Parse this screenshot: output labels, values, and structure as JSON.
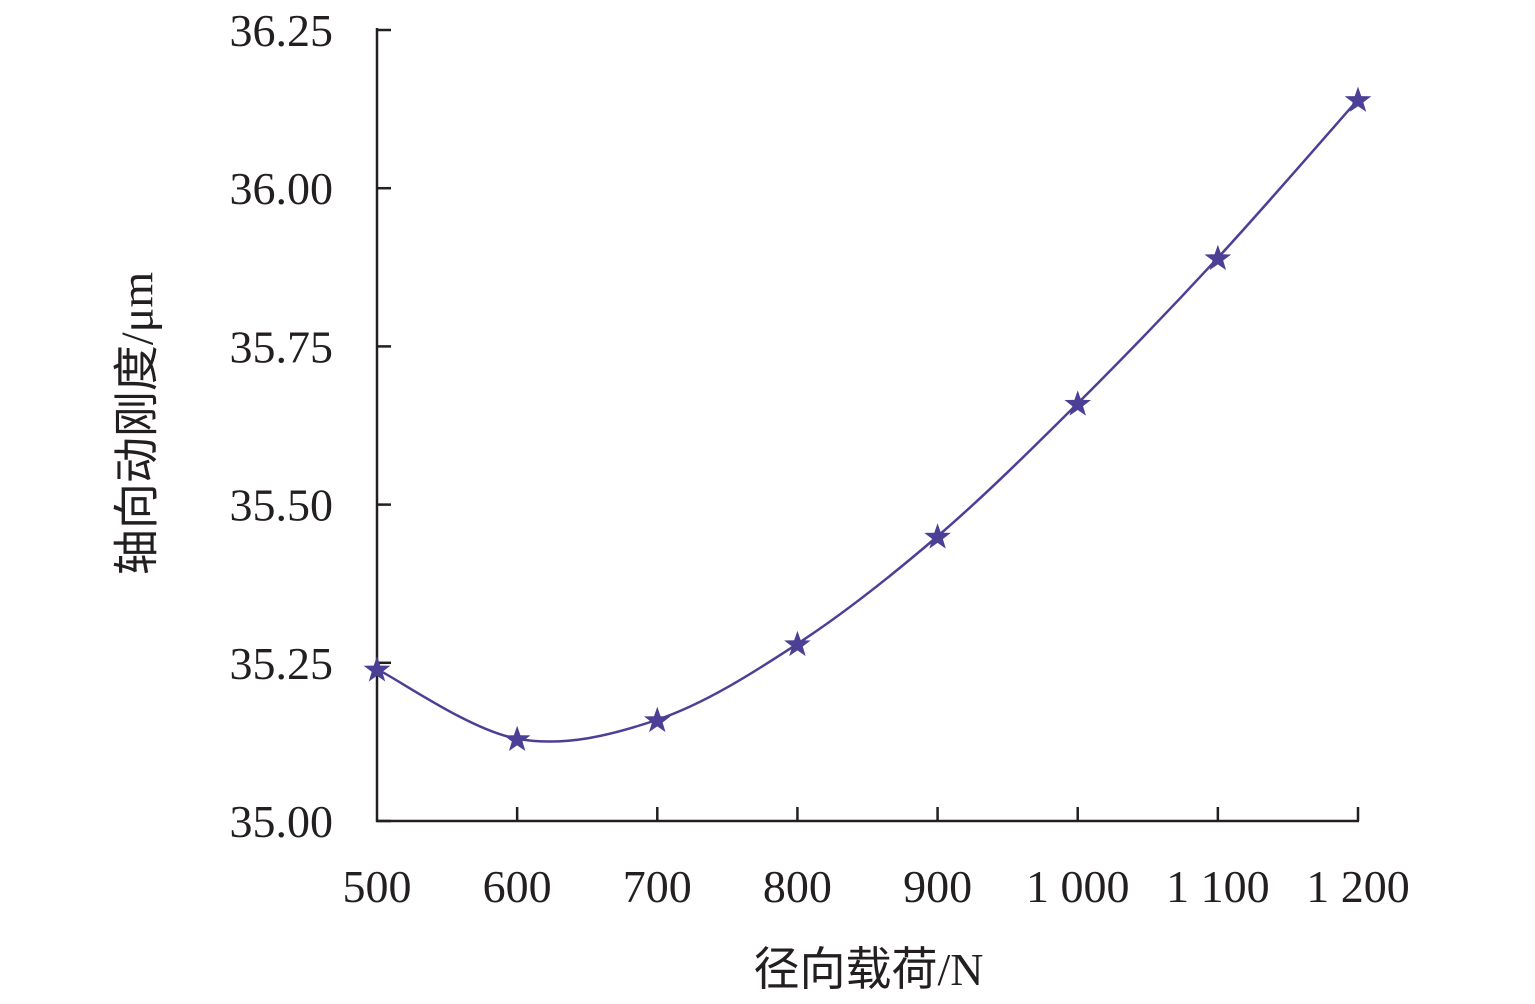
{
  "chart_data": {
    "type": "line",
    "title": "",
    "xlabel": "径向载荷/N",
    "ylabel": "轴向动刚度/μm",
    "x": [
      500,
      600,
      700,
      800,
      900,
      1000,
      1100,
      1200
    ],
    "x_tick_labels": [
      "500",
      "600",
      "700",
      "800",
      "900",
      "1 000",
      "1 100",
      "1 200"
    ],
    "y_ticks": [
      35.0,
      35.25,
      35.5,
      35.75,
      36.0,
      36.25
    ],
    "y_tick_labels": [
      "35.00",
      "35.25",
      "35.50",
      "35.75",
      "36.00",
      "36.25"
    ],
    "xlim": [
      500,
      1200
    ],
    "ylim": [
      35.0,
      36.25
    ],
    "grid": false,
    "marker": "star",
    "smooth": true,
    "series": [
      {
        "values": [
          35.24,
          35.13,
          35.16,
          35.28,
          35.45,
          35.66,
          35.89,
          36.14
        ],
        "color": "#4b3f96"
      }
    ]
  }
}
